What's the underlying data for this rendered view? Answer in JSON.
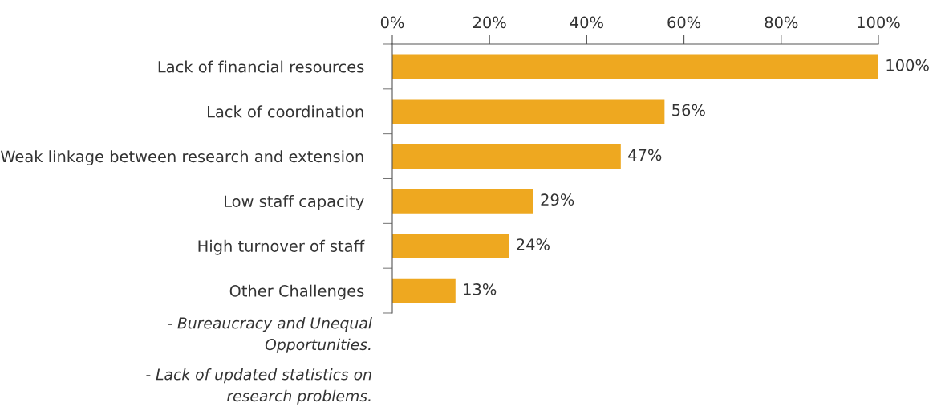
{
  "chart_data": {
    "type": "bar",
    "orientation": "horizontal",
    "categories": [
      "Lack of financial resources",
      "Lack of coordination",
      "Weak linkage between research and extension",
      "Low staff capacity",
      "High turnover of staff",
      "Other Challenges"
    ],
    "values": [
      100,
      56,
      47,
      29,
      24,
      13
    ],
    "value_labels": [
      "100%",
      "56%",
      "47%",
      "29%",
      "24%",
      "13%"
    ],
    "color": "#eea820",
    "xlim": [
      0,
      100
    ],
    "xticks": [
      {
        "value": 0,
        "label": "0%"
      },
      {
        "value": 20,
        "label": "20%"
      },
      {
        "value": 40,
        "label": "40%"
      },
      {
        "value": 60,
        "label": "60%"
      },
      {
        "value": 80,
        "label": "80%"
      },
      {
        "value": 100,
        "label": "100%"
      }
    ],
    "annotations": [
      "- Bureaucracy and Unequal\nOpportunities.",
      "- Lack of updated statistics on\nresearch problems."
    ],
    "grid": false,
    "legend": false
  }
}
